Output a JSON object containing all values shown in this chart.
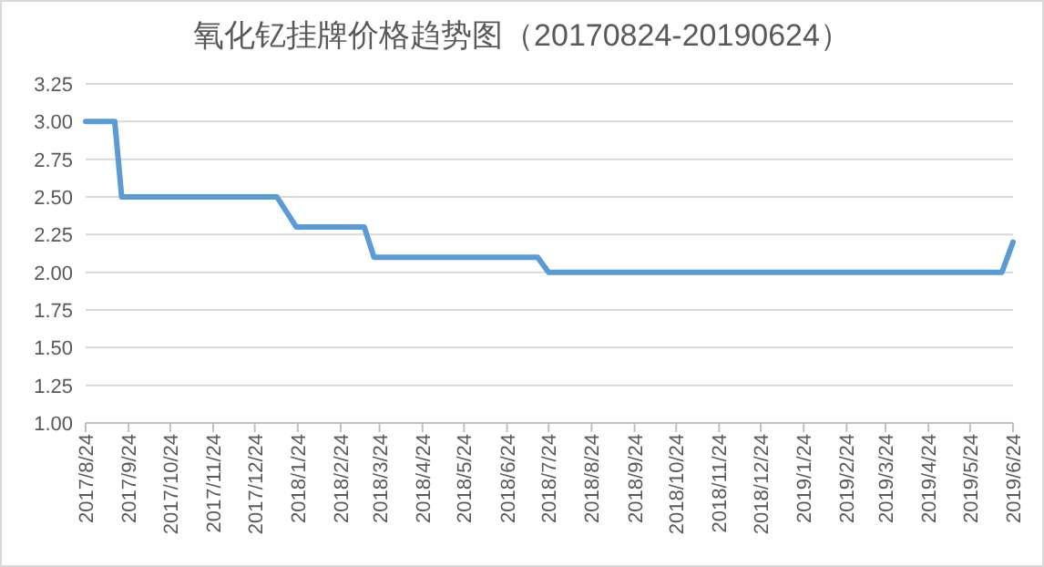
{
  "chart_data": {
    "type": "line",
    "title": "氧化钇挂牌价格趋势图（20170824-20190624）",
    "x": [
      "2017-08-24",
      "2017-09-14",
      "2017-09-19",
      "2018-01-09",
      "2018-01-23",
      "2018-03-13",
      "2018-03-20",
      "2018-07-16",
      "2018-07-24",
      "2019-06-16",
      "2019-06-24"
    ],
    "series": [
      {
        "color": "#5b9bd5",
        "values": [
          3.0,
          3.0,
          2.5,
          2.5,
          2.3,
          2.3,
          2.1,
          2.1,
          2.0,
          2.0,
          2.2
        ]
      }
    ],
    "xlim": [
      "2017-08-24",
      "2019-06-24"
    ],
    "xticks": [
      {
        "value": "2017-08-24",
        "label": "2017/8/24"
      },
      {
        "value": "2017-09-24",
        "label": "2017/9/24"
      },
      {
        "value": "2017-10-24",
        "label": "2017/10/24"
      },
      {
        "value": "2017-11-24",
        "label": "2017/11/24"
      },
      {
        "value": "2017-12-24",
        "label": "2017/12/24"
      },
      {
        "value": "2018-01-24",
        "label": "2018/1/24"
      },
      {
        "value": "2018-02-24",
        "label": "2018/2/24"
      },
      {
        "value": "2018-03-24",
        "label": "2018/3/24"
      },
      {
        "value": "2018-04-24",
        "label": "2018/4/24"
      },
      {
        "value": "2018-05-24",
        "label": "2018/5/24"
      },
      {
        "value": "2018-06-24",
        "label": "2018/6/24"
      },
      {
        "value": "2018-07-24",
        "label": "2018/7/24"
      },
      {
        "value": "2018-08-24",
        "label": "2018/8/24"
      },
      {
        "value": "2018-09-24",
        "label": "2018/9/24"
      },
      {
        "value": "2018-10-24",
        "label": "2018/10/24"
      },
      {
        "value": "2018-11-24",
        "label": "2018/11/24"
      },
      {
        "value": "2018-12-24",
        "label": "2018/12/24"
      },
      {
        "value": "2019-01-24",
        "label": "2019/1/24"
      },
      {
        "value": "2019-02-24",
        "label": "2019/2/24"
      },
      {
        "value": "2019-03-24",
        "label": "2019/3/24"
      },
      {
        "value": "2019-04-24",
        "label": "2019/4/24"
      },
      {
        "value": "2019-05-24",
        "label": "2019/5/24"
      },
      {
        "value": "2019-06-24",
        "label": "2019/6/24"
      }
    ],
    "ylim": [
      1.0,
      3.25
    ],
    "yticks": [
      {
        "value": 1.0,
        "label": "1.00"
      },
      {
        "value": 1.25,
        "label": "1.25"
      },
      {
        "value": 1.5,
        "label": "1.50"
      },
      {
        "value": 1.75,
        "label": "1.75"
      },
      {
        "value": 2.0,
        "label": "2.00"
      },
      {
        "value": 2.25,
        "label": "2.25"
      },
      {
        "value": 2.5,
        "label": "2.50"
      },
      {
        "value": 2.75,
        "label": "2.75"
      },
      {
        "value": 3.0,
        "label": "3.00"
      },
      {
        "value": 3.25,
        "label": "3.25"
      }
    ],
    "grid": "y",
    "marker": "none",
    "line_style": "solid"
  }
}
